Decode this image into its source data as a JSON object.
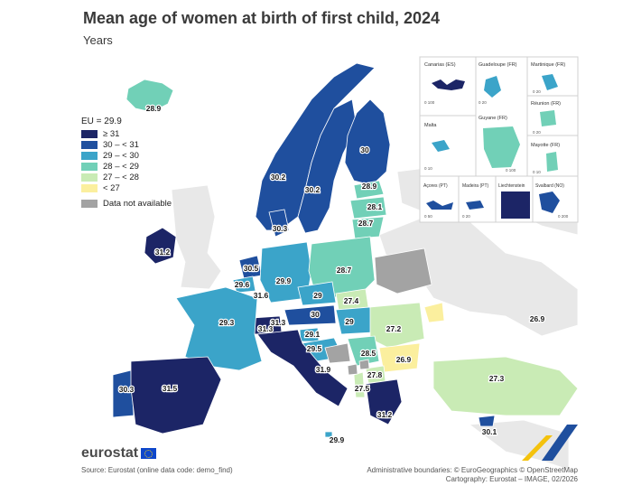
{
  "title": "Mean age of women at birth of first child, 2024",
  "subtitle": "Years",
  "legend": {
    "eu": "EU = 29.9",
    "classes": [
      {
        "label": "≥ 31",
        "color": "#1c2566"
      },
      {
        "label": "30 – < 31",
        "color": "#1f4f9e"
      },
      {
        "label": "29 – < 30",
        "color": "#3ba4c9"
      },
      {
        "label": "28 – < 29",
        "color": "#71d0b7"
      },
      {
        "label": "27 – < 28",
        "color": "#c9ebb5"
      },
      {
        "label": "< 27",
        "color": "#fbef9e"
      }
    ],
    "na_label": "Data not available",
    "na_color": "#a3a3a3"
  },
  "countries": [
    {
      "name": "Iceland",
      "value": "28.9"
    },
    {
      "name": "Norway",
      "value": "30.2"
    },
    {
      "name": "Sweden",
      "value": "30.2"
    },
    {
      "name": "Finland",
      "value": "30"
    },
    {
      "name": "Estonia",
      "value": "28.9"
    },
    {
      "name": "Latvia",
      "value": "28.1"
    },
    {
      "name": "Lithuania",
      "value": "28.7"
    },
    {
      "name": "Denmark",
      "value": "30.3"
    },
    {
      "name": "Ireland",
      "value": "31.2"
    },
    {
      "name": "Netherlands",
      "value": "30.5"
    },
    {
      "name": "Belgium",
      "value": "29.6"
    },
    {
      "name": "Luxembourg",
      "value": "31.6"
    },
    {
      "name": "Germany",
      "value": "29.9"
    },
    {
      "name": "Poland",
      "value": "28.7"
    },
    {
      "name": "Czechia",
      "value": "29"
    },
    {
      "name": "Slovakia",
      "value": "27.4"
    },
    {
      "name": "Austria",
      "value": "30"
    },
    {
      "name": "Hungary",
      "value": "29"
    },
    {
      "name": "Switzerland",
      "value": "31.3"
    },
    {
      "name": "Liechtenstein",
      "value": "31.3"
    },
    {
      "name": "France",
      "value": "29.3"
    },
    {
      "name": "Slovenia",
      "value": "29.1"
    },
    {
      "name": "Croatia",
      "value": "29.5"
    },
    {
      "name": "Romania",
      "value": "27.2"
    },
    {
      "name": "Serbia",
      "value": "28.5"
    },
    {
      "name": "Bulgaria",
      "value": "26.9"
    },
    {
      "name": "North Macedonia",
      "value": "27.8"
    },
    {
      "name": "Albania",
      "value": "27.5"
    },
    {
      "name": "Italy",
      "value": "31.9"
    },
    {
      "name": "Greece",
      "value": "31.2"
    },
    {
      "name": "Portugal",
      "value": "30.3"
    },
    {
      "name": "Spain",
      "value": "31.5"
    },
    {
      "name": "Malta",
      "value": "29.9"
    },
    {
      "name": "Cyprus",
      "value": "30.1"
    },
    {
      "name": "Moldova",
      "value": "26.9"
    },
    {
      "name": "Türkiye",
      "value": "27.3"
    }
  ],
  "insets": {
    "canarias": "Canarias (ES)",
    "guadeloupe": "Guadeloupe (FR)",
    "martinique": "Martinique (FR)",
    "reunion": "Réunion (FR)",
    "malta": "Malta",
    "guyane": "Guyane (FR)",
    "mayotte": "Mayotte (FR)",
    "acores": "Açores (PT)",
    "madeira": "Madeira (PT)",
    "liechtenstein": "Liechtenstein",
    "svalbard": "Svalbard (NO)",
    "scale_100": "0  100",
    "scale_20": "0  20",
    "scale_10": "0  10",
    "scale_50": "0  50",
    "scale_200": "0  200"
  },
  "footer": {
    "logo": "eurostat",
    "source": "Source: Eurostat (online data code: demo_find)",
    "admin": "Administrative boundaries: © EuroGeographics © OpenStreetMap",
    "cartography": "Cartography: Eurostat – IMAGE, 02/2026"
  }
}
